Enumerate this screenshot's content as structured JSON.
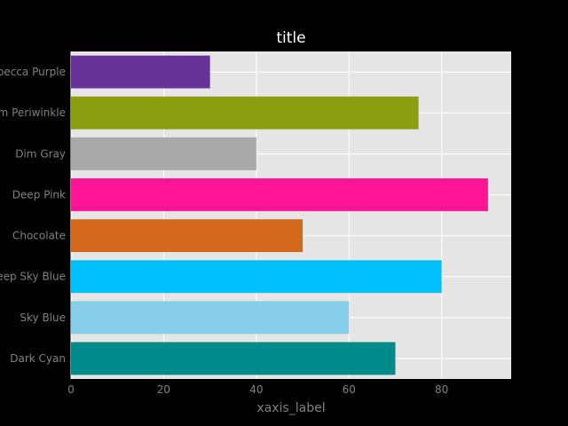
{
  "chart_data": {
    "type": "bar",
    "orientation": "horizontal",
    "title": "title",
    "xlabel": "xaxis_label",
    "ylabel": "",
    "xlim": [
      0,
      95
    ],
    "xticks": [
      0,
      20,
      40,
      60,
      80
    ],
    "grid": true,
    "categories": [
      "Dark Cyan",
      "Sky Blue",
      "Deep Sky Blue",
      "Chocolate",
      "Deep Pink",
      "Dim Gray",
      "Medium Periwinkle",
      "Rebecca Purple"
    ],
    "values": [
      70,
      60,
      80,
      50,
      90,
      40,
      75,
      30
    ],
    "colors": [
      "#008B8B",
      "#87CEEB",
      "#00BFFF",
      "#D2691E",
      "#FF1493",
      "#A9A9A9",
      "#8B9E10",
      "#663399"
    ]
  },
  "theme": {
    "figure_bg": "#000000",
    "axes_bg": "#E5E5E5",
    "grid_color": "#FFFFFF",
    "text_color": "#808080",
    "title_color": "#FFFFFF"
  }
}
